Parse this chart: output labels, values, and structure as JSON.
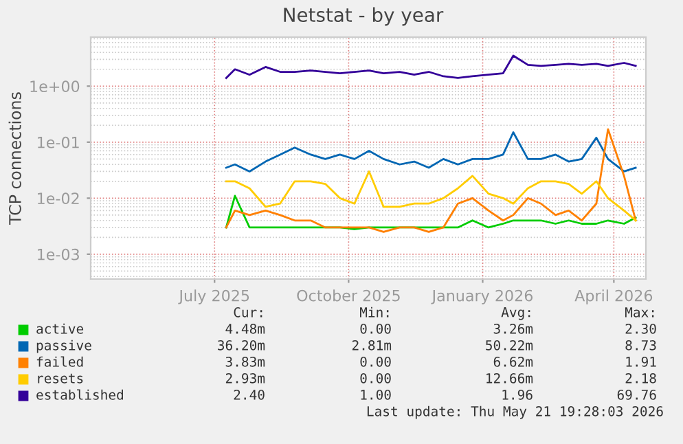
{
  "chart_data": {
    "type": "line",
    "title": "Netstat - by year",
    "ylabel": "TCP connections",
    "x": [
      "2025-07-09",
      "2025-07-15",
      "2025-07-25",
      "2025-08-05",
      "2025-08-15",
      "2025-08-25",
      "2025-09-05",
      "2025-09-15",
      "2025-09-25",
      "2025-10-05",
      "2025-10-15",
      "2025-10-25",
      "2025-11-05",
      "2025-11-15",
      "2025-11-25",
      "2025-12-05",
      "2025-12-15",
      "2025-12-25",
      "2026-01-05",
      "2026-01-15",
      "2026-01-22",
      "2026-02-01",
      "2026-02-10",
      "2026-02-20",
      "2026-03-01",
      "2026-03-10",
      "2026-03-20",
      "2026-03-28",
      "2026-04-08",
      "2026-04-16"
    ],
    "series": [
      {
        "name": "active",
        "color": "#00cc00",
        "values": [
          0.003,
          0.011,
          0.003,
          0.003,
          0.003,
          0.003,
          0.003,
          0.003,
          0.003,
          0.0028,
          0.003,
          0.003,
          0.003,
          0.003,
          0.003,
          0.003,
          0.003,
          0.004,
          0.003,
          0.0035,
          0.004,
          0.004,
          0.004,
          0.0035,
          0.004,
          0.0035,
          0.0035,
          0.004,
          0.0035,
          0.0045
        ]
      },
      {
        "name": "passive",
        "color": "#0066b3",
        "values": [
          0.035,
          0.04,
          0.03,
          0.045,
          0.06,
          0.08,
          0.06,
          0.05,
          0.06,
          0.05,
          0.07,
          0.05,
          0.04,
          0.045,
          0.035,
          0.05,
          0.04,
          0.05,
          0.05,
          0.06,
          0.15,
          0.05,
          0.05,
          0.06,
          0.045,
          0.05,
          0.12,
          0.05,
          0.03,
          0.035
        ]
      },
      {
        "name": "failed",
        "color": "#ff8000",
        "values": [
          0.003,
          0.006,
          0.005,
          0.006,
          0.005,
          0.004,
          0.004,
          0.003,
          0.003,
          0.003,
          0.003,
          0.0025,
          0.003,
          0.003,
          0.0025,
          0.003,
          0.008,
          0.01,
          0.006,
          0.004,
          0.005,
          0.01,
          0.008,
          0.005,
          0.006,
          0.004,
          0.008,
          0.17,
          0.025,
          0.004
        ]
      },
      {
        "name": "resets",
        "color": "#ffcc00",
        "values": [
          0.02,
          0.02,
          0.015,
          0.007,
          0.008,
          0.02,
          0.02,
          0.018,
          0.01,
          0.008,
          0.03,
          0.007,
          0.007,
          0.008,
          0.008,
          0.01,
          0.015,
          0.025,
          0.012,
          0.01,
          0.008,
          0.015,
          0.02,
          0.02,
          0.018,
          0.012,
          0.02,
          0.01,
          0.006,
          0.004
        ]
      },
      {
        "name": "established",
        "color": "#330099",
        "values": [
          1.4,
          2.0,
          1.6,
          2.2,
          1.8,
          1.8,
          1.9,
          1.8,
          1.7,
          1.8,
          1.9,
          1.7,
          1.8,
          1.6,
          1.8,
          1.5,
          1.4,
          1.5,
          1.6,
          1.7,
          3.5,
          2.4,
          2.3,
          2.4,
          2.5,
          2.4,
          2.5,
          2.3,
          2.6,
          2.3
        ]
      }
    ],
    "log": "y",
    "xlim": [
      "2025-04-07",
      "2026-04-23"
    ],
    "ylim": [
      0.00036,
      7.5
    ],
    "xticks": [
      {
        "value": "2025-07-01",
        "label": "July 2025"
      },
      {
        "value": "2025-10-01",
        "label": "October 2025"
      },
      {
        "value": "2026-01-01",
        "label": "January 2026"
      },
      {
        "value": "2026-04-01",
        "label": "April 2026"
      }
    ],
    "yticks": [
      {
        "value": 0.001,
        "label": "1e-03"
      },
      {
        "value": 0.01,
        "label": "1e-02"
      },
      {
        "value": 0.1,
        "label": "1e-01"
      },
      {
        "value": 1,
        "label": "1e+00"
      }
    ],
    "grid": true,
    "legend": "bottom",
    "line_style": "solid",
    "marker": "none",
    "annotations": [
      "Cur:",
      "Min:",
      "Avg:",
      "Max:",
      "4.48m",
      "0.00",
      "3.26m",
      "2.30",
      "36.20m",
      "2.81m",
      "50.22m",
      "8.73",
      "3.83m",
      "0.00",
      "6.62m",
      "1.91",
      "2.93m",
      "0.00",
      "12.66m",
      "2.18",
      "2.40",
      "1.00",
      "1.96",
      "69.76",
      "Last update: Thu May 21 19:28:03 2026"
    ]
  }
}
